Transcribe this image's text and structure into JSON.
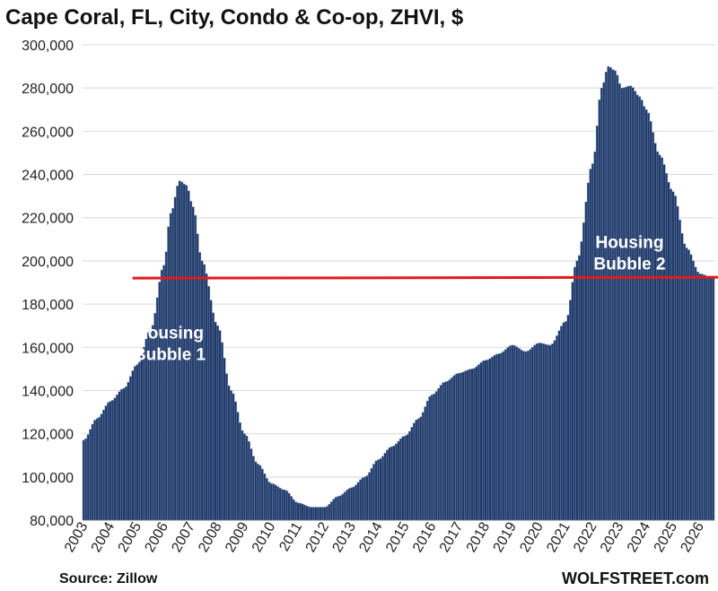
{
  "chart_data": {
    "type": "bar",
    "title": "Cape Coral, FL, City, Condo & Co-op, ZHVI, $",
    "xlabel": "",
    "ylabel": "",
    "ylim": [
      80000,
      300000
    ],
    "yticks": [
      80000,
      100000,
      120000,
      140000,
      160000,
      180000,
      200000,
      220000,
      240000,
      260000,
      280000,
      300000
    ],
    "ytick_labels": [
      "80,000",
      "100,000",
      "120,000",
      "140,000",
      "160,000",
      "180,000",
      "200,000",
      "220,000",
      "240,000",
      "260,000",
      "280,000",
      "300,000"
    ],
    "x_year_labels": [
      "2003",
      "2004",
      "2005",
      "2006",
      "2007",
      "2008",
      "2009",
      "2010",
      "2011",
      "2012",
      "2013",
      "2014",
      "2015",
      "2016",
      "2017",
      "2018",
      "2019",
      "2020",
      "2021",
      "2022",
      "2023",
      "2024",
      "2025",
      "2026"
    ],
    "x_start": "2003-01",
    "x_end": "2026-07",
    "frequency": "monthly",
    "anchors": [
      [
        "2003-01",
        117000
      ],
      [
        "2003-07",
        127000
      ],
      [
        "2004-01",
        135000
      ],
      [
        "2004-07",
        141000
      ],
      [
        "2005-01",
        152000
      ],
      [
        "2005-07",
        168000
      ],
      [
        "2006-01",
        198000
      ],
      [
        "2006-04",
        222000
      ],
      [
        "2006-08",
        237000
      ],
      [
        "2006-11",
        235000
      ],
      [
        "2007-02",
        225000
      ],
      [
        "2007-06",
        200000
      ],
      [
        "2008-01",
        170000
      ],
      [
        "2008-07",
        140000
      ],
      [
        "2009-01",
        120000
      ],
      [
        "2009-07",
        106000
      ],
      [
        "2010-01",
        97000
      ],
      [
        "2010-07",
        94000
      ],
      [
        "2011-01",
        88000
      ],
      [
        "2011-07",
        86000
      ],
      [
        "2012-01",
        86000
      ],
      [
        "2012-07",
        91000
      ],
      [
        "2013-01",
        95000
      ],
      [
        "2013-07",
        100000
      ],
      [
        "2014-01",
        108000
      ],
      [
        "2014-07",
        114000
      ],
      [
        "2015-01",
        119000
      ],
      [
        "2015-07",
        127000
      ],
      [
        "2016-01",
        138000
      ],
      [
        "2016-07",
        144000
      ],
      [
        "2017-01",
        148000
      ],
      [
        "2017-07",
        150000
      ],
      [
        "2018-01",
        154000
      ],
      [
        "2018-07",
        157000
      ],
      [
        "2019-01",
        161000
      ],
      [
        "2019-07",
        158000
      ],
      [
        "2020-01",
        162000
      ],
      [
        "2020-06",
        161000
      ],
      [
        "2021-01",
        172000
      ],
      [
        "2021-06",
        200000
      ],
      [
        "2022-01",
        245000
      ],
      [
        "2022-05",
        280000
      ],
      [
        "2022-08",
        290000
      ],
      [
        "2022-11",
        288000
      ],
      [
        "2023-02",
        280000
      ],
      [
        "2023-06",
        281000
      ],
      [
        "2023-10",
        276000
      ],
      [
        "2024-01",
        270000
      ],
      [
        "2024-07",
        249000
      ],
      [
        "2025-01",
        232000
      ],
      [
        "2025-07",
        206000
      ],
      [
        "2026-01",
        194000
      ],
      [
        "2026-07",
        192000
      ]
    ],
    "reference_line": {
      "value": 192000,
      "x_start": "2005-01",
      "x_end": "2026-07",
      "color": "#e31a1c"
    },
    "bar_color": "#1f3864",
    "bar_edge_color": "#6f86b5",
    "annotations": [
      {
        "text": "Housing",
        "x": "2006-04",
        "y": 164000
      },
      {
        "text": "Bubble 1",
        "x": "2006-04",
        "y": 154000
      },
      {
        "text": "Housing",
        "x": "2023-06",
        "y": 206000
      },
      {
        "text": "Bubble 2",
        "x": "2023-06",
        "y": 196000
      }
    ],
    "grid": true
  },
  "source": "Source: Zillow",
  "watermark": "WOLFSTREET.com"
}
